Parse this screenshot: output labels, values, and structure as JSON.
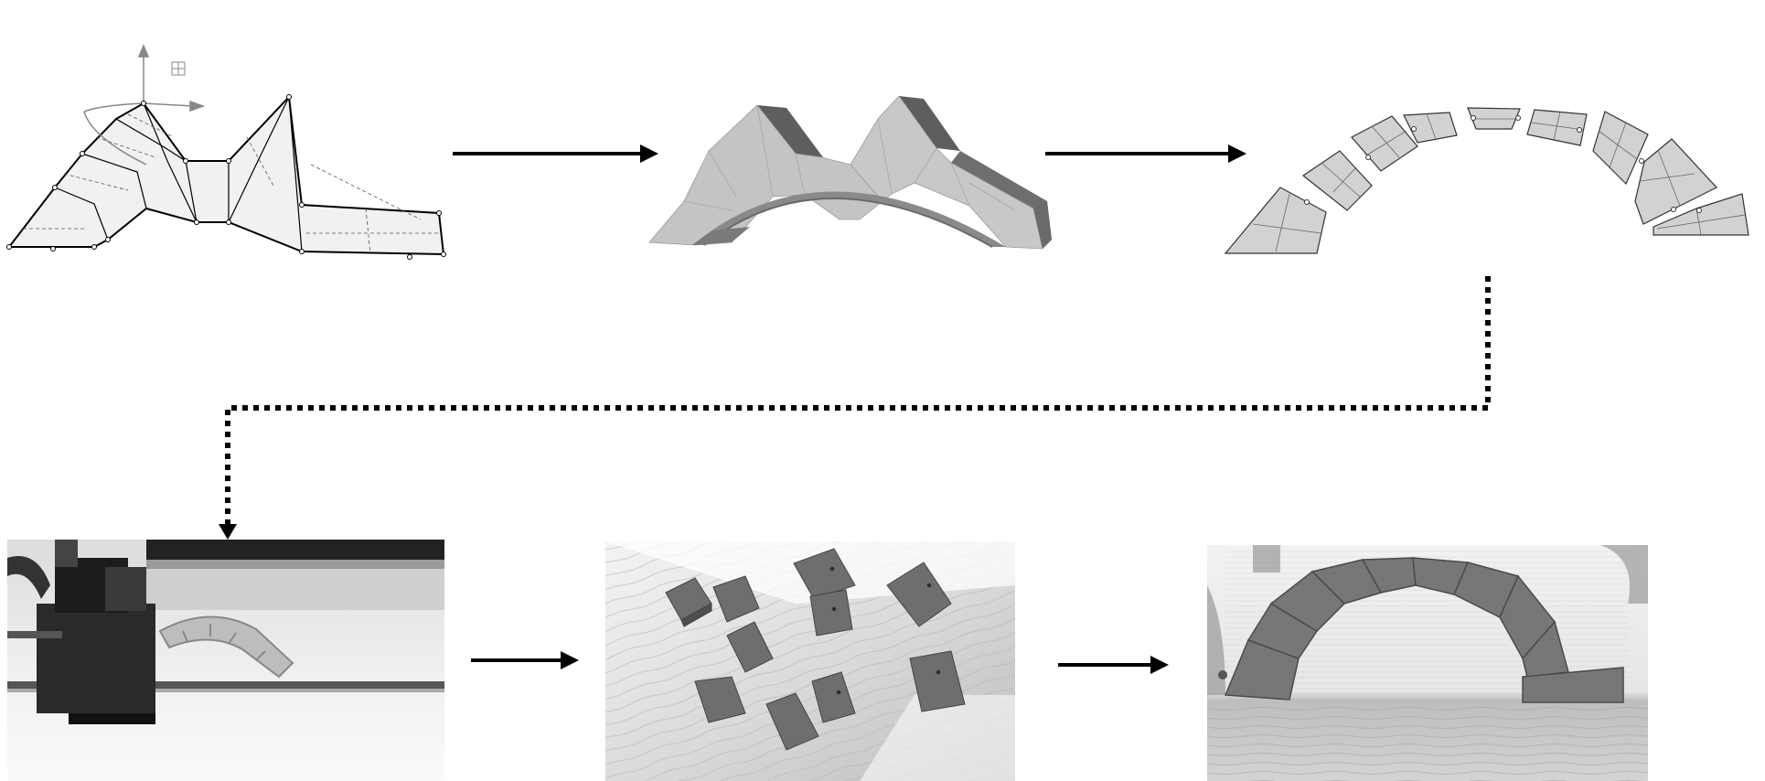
{
  "diagram": {
    "stages": [
      {
        "id": "wireframe-design",
        "icon": "axis-gizmo-icon"
      },
      {
        "id": "solid-model",
        "icon": ""
      },
      {
        "id": "segmented-voussoirs",
        "icon": ""
      },
      {
        "id": "3d-printer-photo",
        "icon": ""
      },
      {
        "id": "printed-blocks-photo",
        "icon": ""
      },
      {
        "id": "assembled-arch-photo",
        "icon": ""
      }
    ],
    "connectors": [
      {
        "from": "wireframe-design",
        "to": "solid-model",
        "style": "solid"
      },
      {
        "from": "solid-model",
        "to": "segmented-voussoirs",
        "style": "solid"
      },
      {
        "from": "segmented-voussoirs",
        "to": "3d-printer-photo",
        "style": "dotted"
      },
      {
        "from": "3d-printer-photo",
        "to": "printed-blocks-photo",
        "style": "solid"
      },
      {
        "from": "printed-blocks-photo",
        "to": "assembled-arch-photo",
        "style": "solid"
      }
    ],
    "colors": {
      "arrow": "#000000",
      "model_fill": "#c4c4c4",
      "model_dark": "#7a7a7a",
      "voussoir_fill": "#d2d2d2",
      "wire_fill": "#f1f1f1",
      "printed_part": "#6e6e6e"
    }
  }
}
